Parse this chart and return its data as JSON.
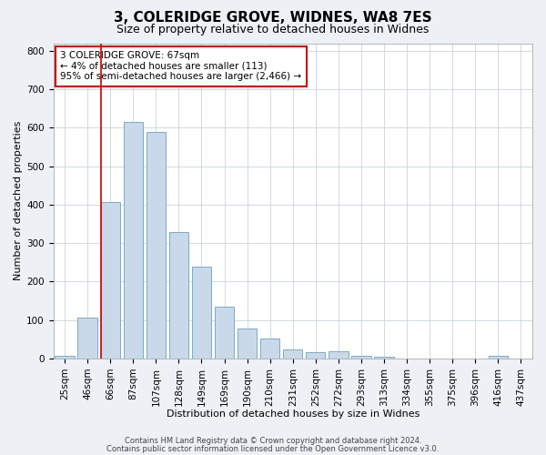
{
  "title1": "3, COLERIDGE GROVE, WIDNES, WA8 7ES",
  "title2": "Size of property relative to detached houses in Widnes",
  "xlabel": "Distribution of detached houses by size in Widnes",
  "ylabel": "Number of detached properties",
  "categories": [
    "25sqm",
    "46sqm",
    "66sqm",
    "87sqm",
    "107sqm",
    "128sqm",
    "149sqm",
    "169sqm",
    "190sqm",
    "210sqm",
    "231sqm",
    "252sqm",
    "272sqm",
    "293sqm",
    "313sqm",
    "334sqm",
    "355sqm",
    "375sqm",
    "396sqm",
    "416sqm",
    "437sqm"
  ],
  "values": [
    7,
    107,
    407,
    615,
    590,
    330,
    238,
    135,
    78,
    52,
    23,
    17,
    18,
    8,
    5,
    0,
    0,
    0,
    0,
    8,
    0
  ],
  "bar_color": "#c9d9ea",
  "bar_edge_color": "#7aaac8",
  "highlight_index": 2,
  "highlight_color": "#cc0000",
  "annotation_text": "3 COLERIDGE GROVE: 67sqm\n← 4% of detached houses are smaller (113)\n95% of semi-detached houses are larger (2,466) →",
  "annotation_box_color": "#ffffff",
  "annotation_box_edge_color": "#cc0000",
  "ylim": [
    0,
    820
  ],
  "yticks": [
    0,
    100,
    200,
    300,
    400,
    500,
    600,
    700,
    800
  ],
  "footer1": "Contains HM Land Registry data © Crown copyright and database right 2024.",
  "footer2": "Contains public sector information licensed under the Open Government Licence v3.0.",
  "bg_color": "#edf1f5",
  "plot_bg_color": "#ffffff",
  "grid_color": "#c8d4dc",
  "title1_fontsize": 11,
  "title2_fontsize": 9,
  "axis_label_fontsize": 8,
  "tick_fontsize": 7.5,
  "annotation_fontsize": 7.5,
  "footer_fontsize": 6
}
